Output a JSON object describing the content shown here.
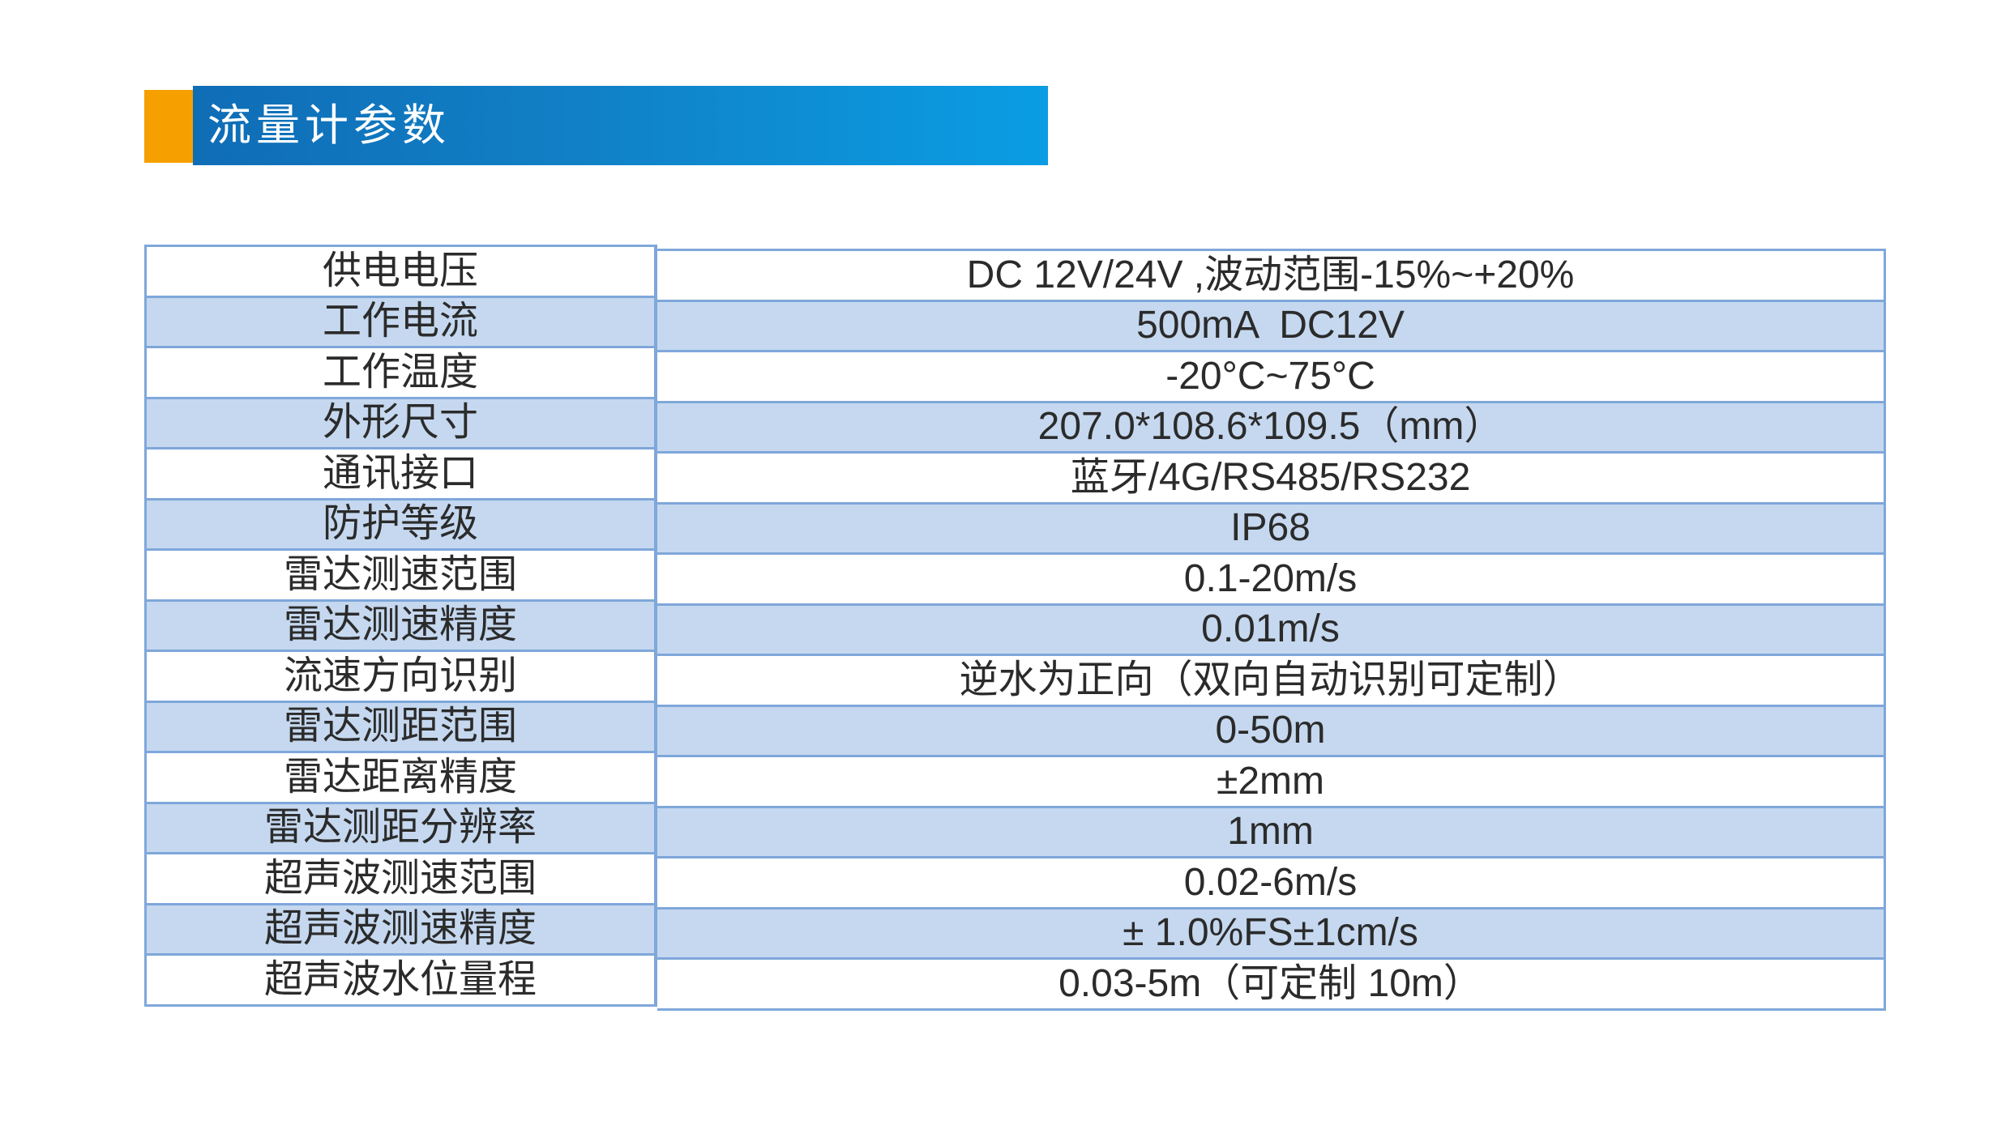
{
  "header": {
    "title": "流量计参数"
  },
  "colors": {
    "accent_orange": "#f5a000",
    "banner_blue_left": "#0f6db6",
    "banner_blue_right": "#0a9de3",
    "table_border_blue": "#7fa7da",
    "row_alt_fill": "#c5d8ef",
    "text": "#2b2b2b"
  },
  "table": {
    "rows": [
      {
        "label": "供电电压",
        "value": "DC 12V/24V ,波动范围-15%~+20%"
      },
      {
        "label": "工作电流",
        "value": "500mA  DC12V"
      },
      {
        "label": "工作温度",
        "value": "-20°C~75°C"
      },
      {
        "label": "外形尺寸",
        "value": "207.0*108.6*109.5（mm）"
      },
      {
        "label": "通讯接口",
        "value": "蓝牙/4G/RS485/RS232"
      },
      {
        "label": "防护等级",
        "value": "IP68"
      },
      {
        "label": "雷达测速范围",
        "value": "0.1-20m/s"
      },
      {
        "label": "雷达测速精度",
        "value": "0.01m/s"
      },
      {
        "label": "流速方向识别",
        "value": "逆水为正向（双向自动识别可定制）"
      },
      {
        "label": "雷达测距范围",
        "value": "0-50m"
      },
      {
        "label": "雷达距离精度",
        "value": "±2mm"
      },
      {
        "label": "雷达测距分辨率",
        "value": "1mm"
      },
      {
        "label": "超声波测速范围",
        "value": "0.02-6m/s"
      },
      {
        "label": "超声波测速精度",
        "value": "± 1.0%FS±1cm/s"
      },
      {
        "label": "超声波水位量程",
        "value": "0.03-5m（可定制 10m）"
      }
    ]
  }
}
